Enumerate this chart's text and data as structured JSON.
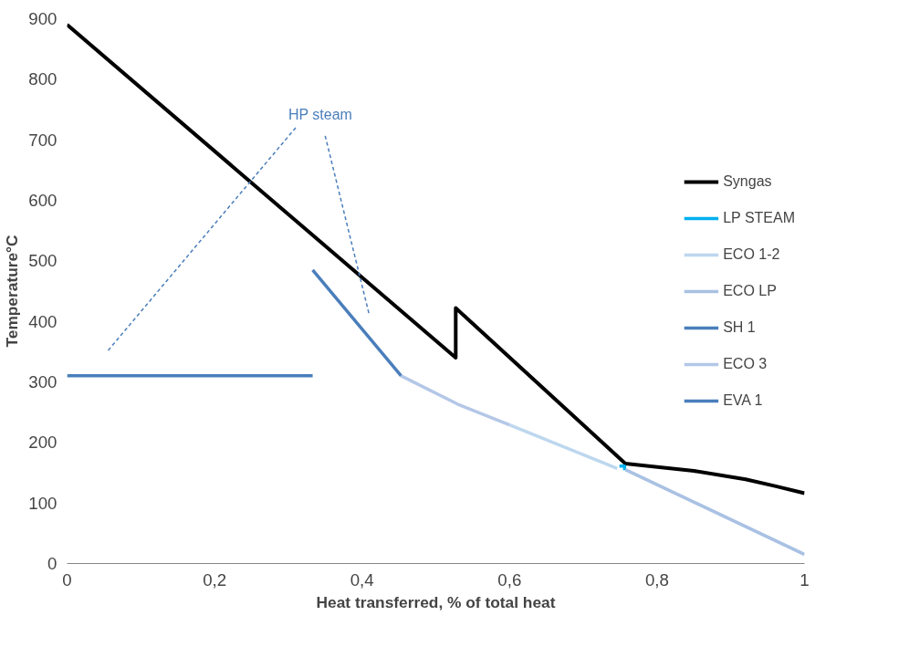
{
  "chart_data": {
    "type": "line",
    "xlabel": "Heat transferred, % of total heat",
    "ylabel": "Temperature°C",
    "xlim": [
      0,
      1
    ],
    "ylim": [
      0,
      900
    ],
    "xticks": [
      0,
      {
        "value": 0.2,
        "label": "0,2"
      },
      {
        "value": 0.4,
        "label": "0,4"
      },
      {
        "value": 0.6,
        "label": "0,6"
      },
      {
        "value": 0.8,
        "label": "0,8"
      },
      1
    ],
    "yticks": [
      0,
      100,
      200,
      300,
      400,
      500,
      600,
      700,
      800,
      900
    ],
    "grid": false,
    "legend": "right",
    "marker": "none",
    "line_style": "solid",
    "series": [
      {
        "name": "Syngas",
        "color": "#000000",
        "x": [
          0,
          0.527,
          0.527,
          0.757,
          0.85,
          0.92,
          0.96,
          1
        ],
        "values": [
          890,
          340,
          422,
          165,
          153,
          139,
          128,
          116
        ]
      },
      {
        "name": "LP STEAM",
        "color": "#00b0f0",
        "x": [
          0.749,
          0.756,
          0.756
        ],
        "values": [
          161,
          161,
          154
        ]
      },
      {
        "name": "ECO 1-2",
        "color": "#bdd7ee",
        "x": [
          0.6,
          0.746
        ],
        "values": [
          229,
          157
        ]
      },
      {
        "name": "ECO LP",
        "color": "#a9c1e3",
        "x": [
          0.757,
          1
        ],
        "values": [
          155,
          15
        ]
      },
      {
        "name": "SH 1",
        "color": "#4a7ebb",
        "x": [
          0.333,
          0.453
        ],
        "values": [
          485,
          310
        ]
      },
      {
        "name": "ECO 3",
        "color": "#b4c7e7",
        "x": [
          0.453,
          0.53,
          0.6
        ],
        "values": [
          310,
          263,
          229
        ]
      },
      {
        "name": "EVA 1",
        "color": "#4a7ebb",
        "x": [
          0,
          0.333
        ],
        "values": [
          310,
          310
        ]
      }
    ],
    "annotations": [
      "HP steam"
    ]
  }
}
